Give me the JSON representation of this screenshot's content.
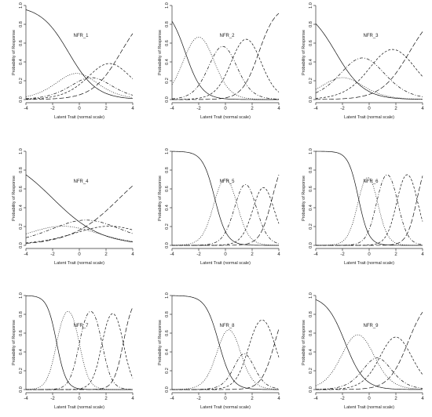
{
  "chart_data": {
    "type": "line",
    "description": "Item category response curves for 9 items",
    "xlabel": "Latent Trait (normal scale)",
    "ylabel": "Probability of Response",
    "xlim": [
      -4,
      4
    ],
    "ylim": [
      0,
      1
    ],
    "x_ticks": [
      -4,
      -2,
      0,
      2,
      4
    ],
    "y_ticks": [
      0.0,
      0.2,
      0.4,
      0.6,
      0.8,
      1.0
    ],
    "grid": false,
    "line_styles": [
      "solid",
      "dotted",
      "dashdot",
      "dashed",
      "longdash"
    ],
    "panels": [
      {
        "title": "NFR_1",
        "a": 0.95,
        "thresholds": [
          -0.8,
          0.4,
          1.4,
          3.1
        ]
      },
      {
        "title": "NFR_2",
        "a": 1.6,
        "thresholds": [
          -3.0,
          -1.0,
          0.6,
          2.5
        ]
      },
      {
        "title": "NFR_3",
        "a": 0.95,
        "thresholds": [
          -2.5,
          -1.5,
          0.5,
          3.0
        ]
      },
      {
        "title": "NFR_4",
        "a": 0.55,
        "thresholds": [
          -2.0,
          -0.5,
          1.5,
          3.0
        ]
      },
      {
        "title": "NFR_5",
        "a": 2.2,
        "thresholds": [
          -0.8,
          0.8,
          2.2,
          3.5
        ]
      },
      {
        "title": "NFR_6",
        "a": 2.6,
        "thresholds": [
          -0.8,
          0.6,
          2.1,
          3.6
        ]
      },
      {
        "title": "NFR_7",
        "a": 2.8,
        "thresholds": [
          -1.7,
          0.0,
          1.7,
          3.3
        ]
      },
      {
        "title": "NFR_8",
        "a": 2.0,
        "thresholds": [
          -0.5,
          1.0,
          1.8,
          3.7
        ]
      },
      {
        "title": "NFR_9",
        "a": 1.4,
        "thresholds": [
          -1.8,
          0.1,
          1.1,
          2.9
        ]
      }
    ]
  }
}
